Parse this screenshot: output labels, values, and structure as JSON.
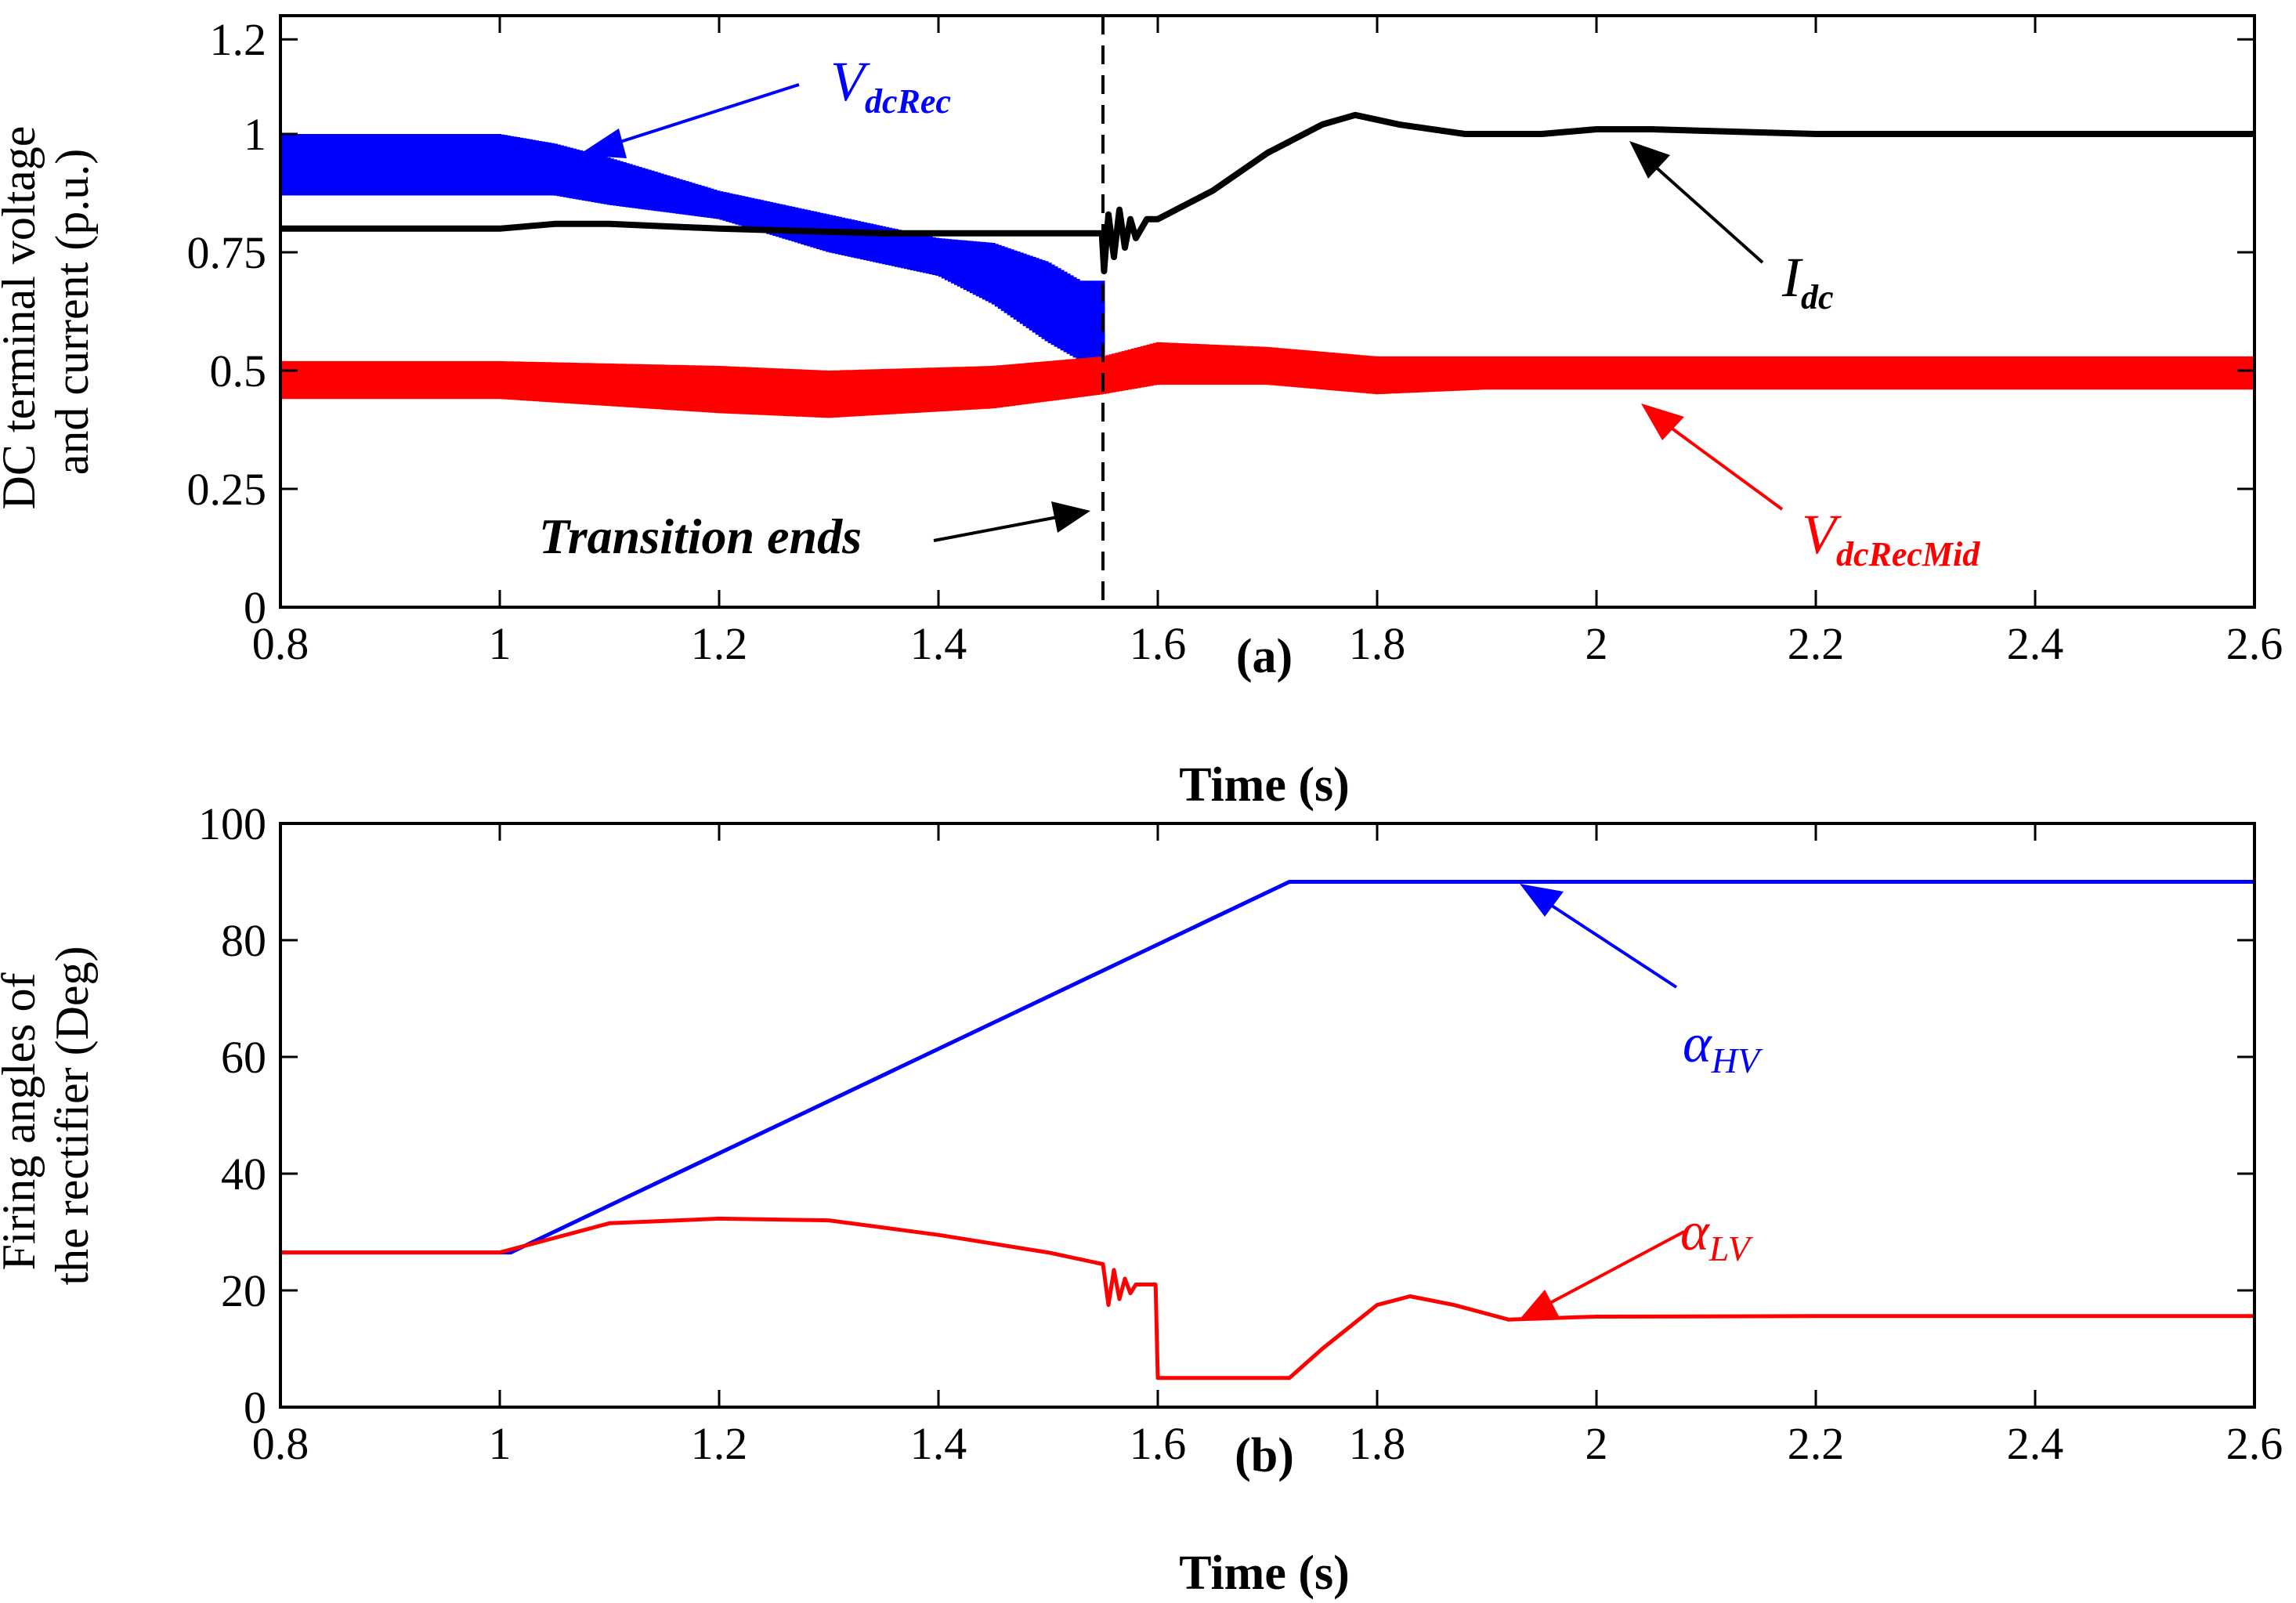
{
  "chart_data": [
    {
      "id": "a",
      "type": "line",
      "panel_label": "(a)",
      "xlabel": "Time (s)",
      "ylabel": [
        "DC terminal voltage",
        "and current (p.u.)"
      ],
      "xlim": [
        0.8,
        2.6
      ],
      "ylim": [
        0,
        1.25
      ],
      "xticks": [
        0.8,
        1,
        1.2,
        1.4,
        1.6,
        1.8,
        2,
        2.2,
        2.4,
        2.6
      ],
      "xtick_labels": [
        "0.8",
        "1",
        "1.2",
        "1.4",
        "1.6",
        "1.8",
        "2",
        "2.2",
        "2.4",
        "2.6"
      ],
      "yticks": [
        0,
        0.25,
        0.5,
        0.75,
        1,
        1.2
      ],
      "ytick_labels": [
        "0",
        "0.25",
        "0.5",
        "0.75",
        "1",
        "1.2"
      ],
      "vline": {
        "x": 1.55,
        "style": "dashed",
        "label": "Transition ends"
      },
      "series": [
        {
          "name": "VdcRec",
          "label_main": "V",
          "label_sub": "dcRec",
          "color": "#0000ff",
          "kind": "band",
          "x": [
            0.8,
            1.0,
            1.05,
            1.1,
            1.2,
            1.3,
            1.4,
            1.45,
            1.5,
            1.53,
            1.55
          ],
          "upper": [
            1.0,
            1.0,
            0.98,
            0.95,
            0.88,
            0.83,
            0.78,
            0.77,
            0.73,
            0.69,
            0.69
          ],
          "lower": [
            0.87,
            0.87,
            0.87,
            0.85,
            0.82,
            0.75,
            0.7,
            0.64,
            0.56,
            0.52,
            0.5
          ]
        },
        {
          "name": "VdcRecMid",
          "label_main": "V",
          "label_sub": "dcRecMid",
          "color": "#ff0000",
          "kind": "band",
          "x": [
            0.8,
            1.0,
            1.2,
            1.3,
            1.45,
            1.55,
            1.6,
            1.7,
            1.8,
            1.9,
            2.0,
            2.2,
            2.6
          ],
          "upper": [
            0.52,
            0.52,
            0.51,
            0.5,
            0.51,
            0.53,
            0.56,
            0.55,
            0.53,
            0.53,
            0.53,
            0.53,
            0.53
          ],
          "lower": [
            0.44,
            0.44,
            0.41,
            0.4,
            0.42,
            0.45,
            0.47,
            0.47,
            0.45,
            0.46,
            0.46,
            0.46,
            0.46
          ]
        },
        {
          "name": "Idc",
          "label_main": "I",
          "label_sub": "dc",
          "color": "#000000",
          "kind": "line",
          "x": [
            0.8,
            1.0,
            1.05,
            1.1,
            1.2,
            1.35,
            1.5,
            1.549,
            1.551,
            1.555,
            1.56,
            1.565,
            1.57,
            1.575,
            1.58,
            1.59,
            1.6,
            1.65,
            1.7,
            1.75,
            1.78,
            1.82,
            1.88,
            1.95,
            2.0,
            2.05,
            2.2,
            2.6
          ],
          "y": [
            0.8,
            0.8,
            0.81,
            0.81,
            0.8,
            0.79,
            0.79,
            0.79,
            0.71,
            0.83,
            0.74,
            0.84,
            0.76,
            0.82,
            0.78,
            0.82,
            0.82,
            0.88,
            0.96,
            1.02,
            1.04,
            1.02,
            1.0,
            1.0,
            1.01,
            1.01,
            1.0,
            1.0
          ]
        }
      ]
    },
    {
      "id": "b",
      "type": "line",
      "panel_label": "(b)",
      "xlabel": "Time (s)",
      "ylabel": [
        "Firing angles of",
        "the rectifier (Deg)"
      ],
      "xlim": [
        0.8,
        2.6
      ],
      "ylim": [
        0,
        100
      ],
      "xticks": [
        0.8,
        1,
        1.2,
        1.4,
        1.6,
        1.8,
        2,
        2.2,
        2.4,
        2.6
      ],
      "xtick_labels": [
        "0.8",
        "1",
        "1.2",
        "1.4",
        "1.6",
        "1.8",
        "2",
        "2.2",
        "2.4",
        "2.6"
      ],
      "yticks": [
        0,
        20,
        40,
        60,
        80,
        100
      ],
      "ytick_labels": [
        "0",
        "20",
        "40",
        "60",
        "80",
        "100"
      ],
      "series": [
        {
          "name": "alphaHV",
          "label_main": "α",
          "label_sub": "HV",
          "color": "#0000ff",
          "x": [
            0.8,
            1.01,
            1.72,
            2.6
          ],
          "y": [
            26.5,
            26.5,
            90,
            90
          ]
        },
        {
          "name": "alphaLV",
          "label_main": "α",
          "label_sub": "LV",
          "color": "#ff0000",
          "x": [
            0.8,
            1.0,
            1.05,
            1.1,
            1.2,
            1.3,
            1.4,
            1.5,
            1.55,
            1.555,
            1.56,
            1.565,
            1.57,
            1.575,
            1.58,
            1.59,
            1.598,
            1.6,
            1.72,
            1.75,
            1.8,
            1.83,
            1.87,
            1.92,
            2.0,
            2.2,
            2.6
          ],
          "y": [
            26.5,
            26.5,
            29,
            31.5,
            32.3,
            32,
            29.5,
            26.5,
            24.5,
            17.5,
            23.5,
            18.5,
            22,
            19.5,
            21,
            21,
            21,
            5,
            5,
            10,
            17.5,
            19,
            17.5,
            15,
            15.5,
            15.6,
            15.6
          ]
        }
      ]
    }
  ]
}
